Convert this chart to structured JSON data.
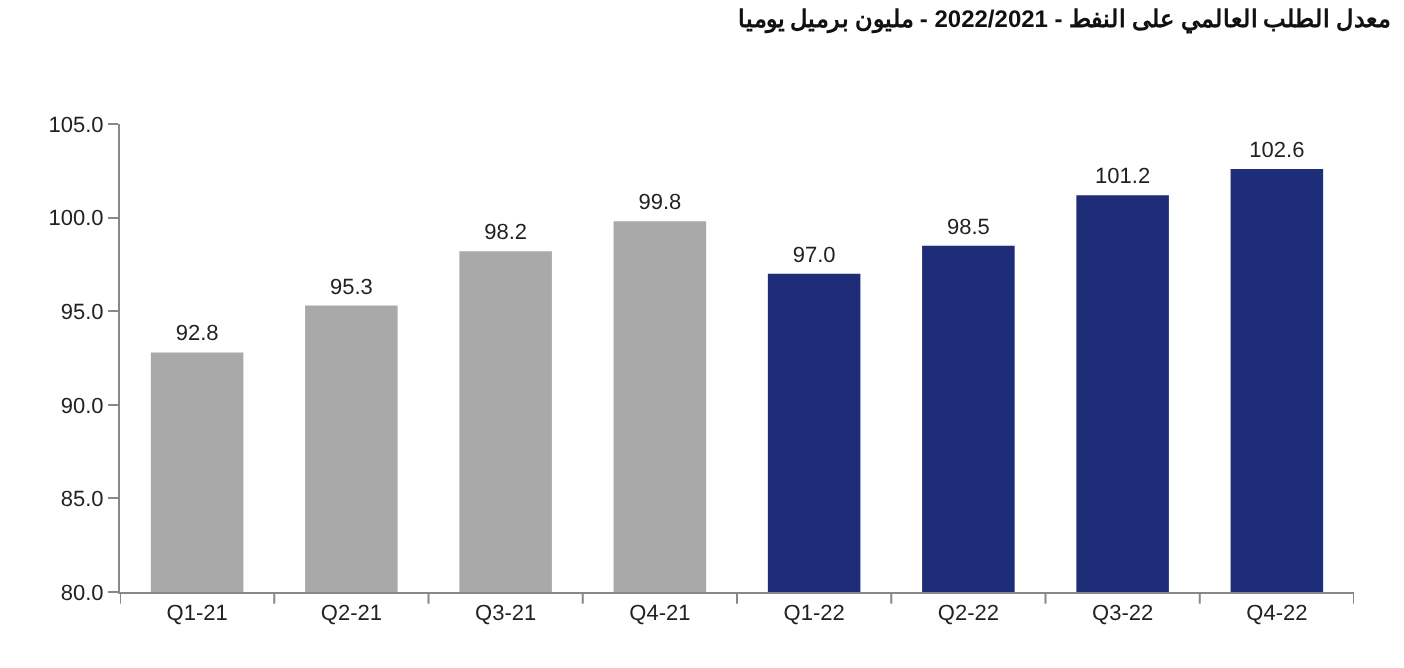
{
  "chart_data": {
    "type": "bar",
    "title": "معدل الطلب العالمي على النفط - 2022/2021 - مليون برميل يوميا",
    "categories": [
      "Q1-21",
      "Q2-21",
      "Q3-21",
      "Q4-21",
      "Q1-22",
      "Q2-22",
      "Q3-22",
      "Q4-22"
    ],
    "values": [
      92.8,
      95.3,
      98.2,
      99.8,
      97.0,
      98.5,
      101.2,
      102.6
    ],
    "colors": [
      "#a9a9a9",
      "#a9a9a9",
      "#a9a9a9",
      "#a9a9a9",
      "#1e2d78",
      "#1e2d78",
      "#1e2d78",
      "#1e2d78"
    ],
    "value_labels": [
      "92.8",
      "95.3",
      "98.2",
      "99.8",
      "97.0",
      "98.5",
      "101.2",
      "102.6"
    ],
    "ylim": [
      80,
      105
    ],
    "yticks": [
      {
        "value": 80,
        "label": "80.0"
      },
      {
        "value": 85,
        "label": "85.0"
      },
      {
        "value": 90,
        "label": "90.0"
      },
      {
        "value": 95,
        "label": "95.0"
      },
      {
        "value": 100,
        "label": "100.0"
      },
      {
        "value": 105,
        "label": "105.0"
      }
    ]
  }
}
